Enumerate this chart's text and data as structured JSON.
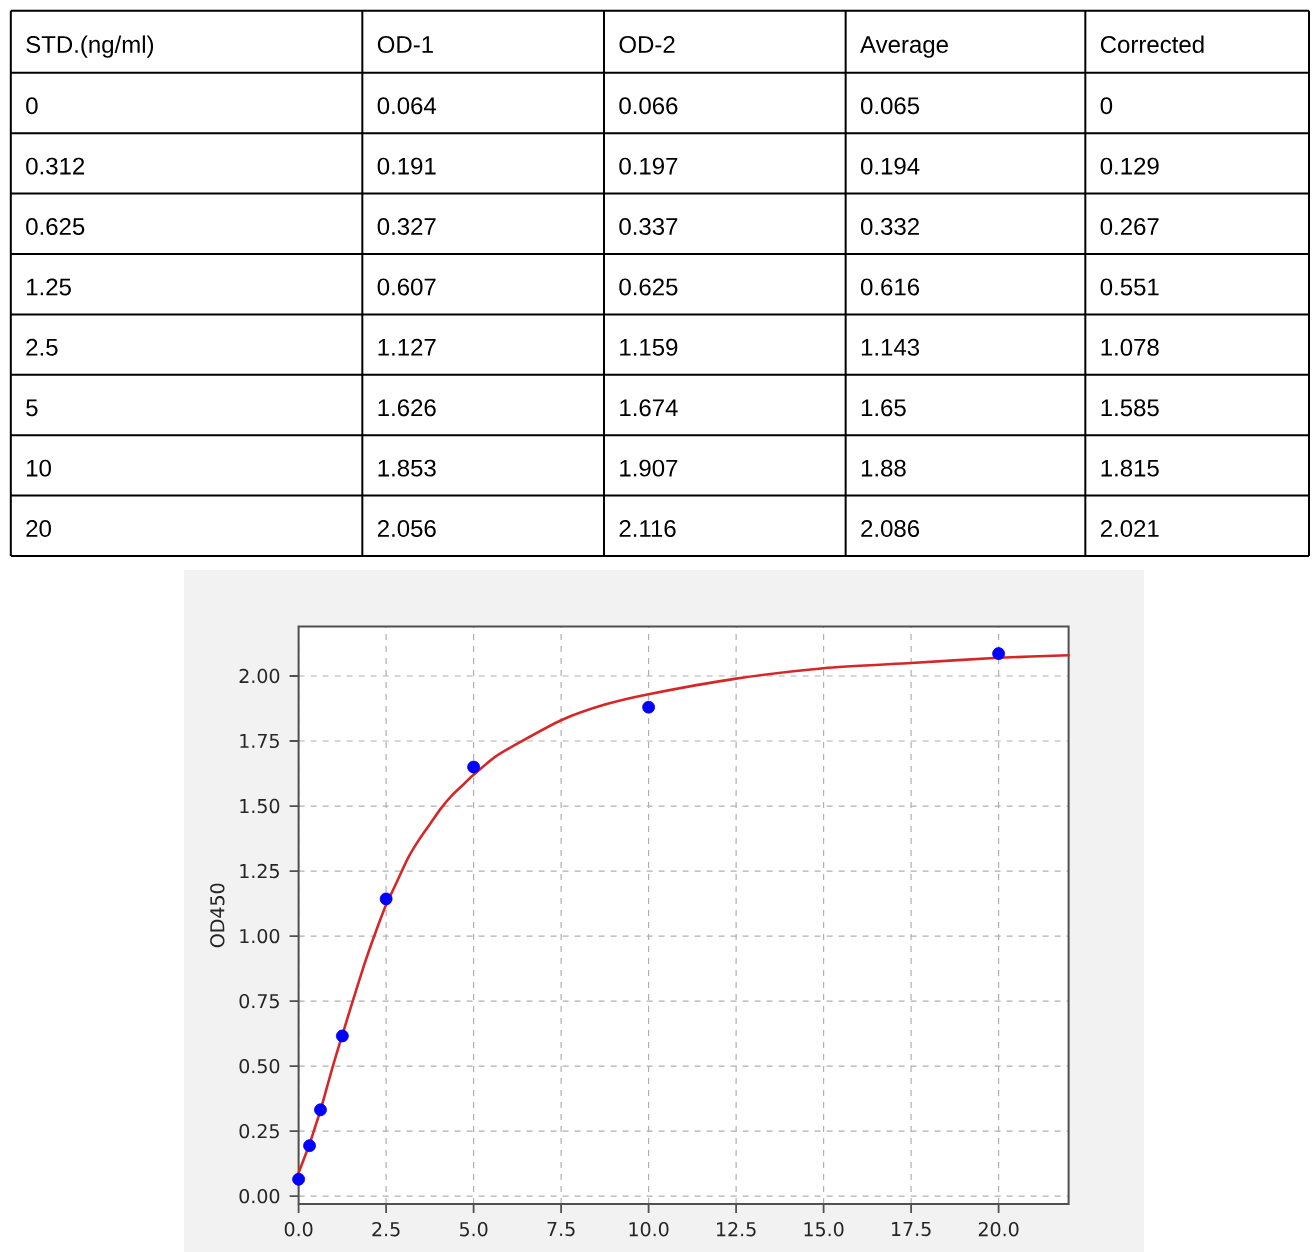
{
  "chart_data": [
    {
      "type": "heatmap",
      "ylabel": "STD.(ng/ml)",
      "categories": [
        "OD-1",
        "OD-2",
        "Average",
        "Corrected"
      ],
      "y_categories": [
        "0",
        "0.312",
        "0.625",
        "1.25",
        "2.5",
        "5",
        "10",
        "20"
      ],
      "cells": [
        [
          0.064,
          0.066,
          0.065,
          0
        ],
        [
          0.191,
          0.197,
          0.194,
          0.129
        ],
        [
          0.327,
          0.337,
          0.332,
          0.267
        ],
        [
          0.607,
          0.625,
          0.616,
          0.551
        ],
        [
          1.127,
          1.159,
          1.143,
          1.078
        ],
        [
          1.626,
          1.674,
          1.65,
          1.585
        ],
        [
          1.853,
          1.907,
          1.88,
          1.815
        ],
        [
          2.056,
          2.116,
          2.086,
          2.021
        ]
      ],
      "data_labels": true
    },
    {
      "type": "scatter",
      "ylabel": "OD450",
      "xlim": [
        0,
        22
      ],
      "ylim": [
        -0.03,
        2.19
      ],
      "xticks": [
        {
          "value": 0,
          "label": "0.0"
        },
        2.5,
        {
          "value": 5,
          "label": "5.0"
        },
        7.5,
        {
          "value": 10,
          "label": "10.0"
        },
        12.5,
        {
          "value": 15,
          "label": "15.0"
        },
        17.5,
        {
          "value": 20,
          "label": "20.0"
        }
      ],
      "yticks": [
        {
          "value": 0,
          "label": "0.00"
        },
        0.25,
        {
          "value": 0.5,
          "label": "0.50"
        },
        0.75,
        {
          "value": 1,
          "label": "1.00"
        },
        1.25,
        {
          "value": 1.5,
          "label": "1.50"
        },
        1.75,
        {
          "value": 2,
          "label": "2.00"
        }
      ],
      "grid": true,
      "series": [
        {
          "type": "scatter",
          "color": "#0000ff",
          "marker": "circle",
          "x": [
            0,
            0.312,
            0.625,
            1.25,
            2.5,
            5,
            10,
            20
          ],
          "values": [
            0.065,
            0.194,
            0.332,
            0.616,
            1.143,
            1.65,
            1.88,
            2.086
          ]
        },
        {
          "type": "line",
          "color": "#d62728",
          "x": [
            0,
            0.156,
            0.312,
            0.469,
            0.625,
            0.8125,
            1,
            1.25,
            1.5,
            1.875,
            2.1875,
            2.5,
            2.8125,
            3.125,
            3.4375,
            3.75,
            4.0625,
            4.375,
            4.6875,
            5,
            5.625,
            6.25,
            7.5,
            8.75,
            10,
            12.5,
            15,
            17.5,
            20,
            22
          ],
          "values": [
            0.09,
            0.145,
            0.2,
            0.265,
            0.33,
            0.42,
            0.51,
            0.62,
            0.73,
            0.89,
            1.01,
            1.12,
            1.21,
            1.3,
            1.37,
            1.43,
            1.49,
            1.54,
            1.58,
            1.62,
            1.69,
            1.74,
            1.83,
            1.89,
            1.93,
            1.99,
            2.03,
            2.05,
            2.07,
            2.08
          ]
        }
      ]
    }
  ]
}
